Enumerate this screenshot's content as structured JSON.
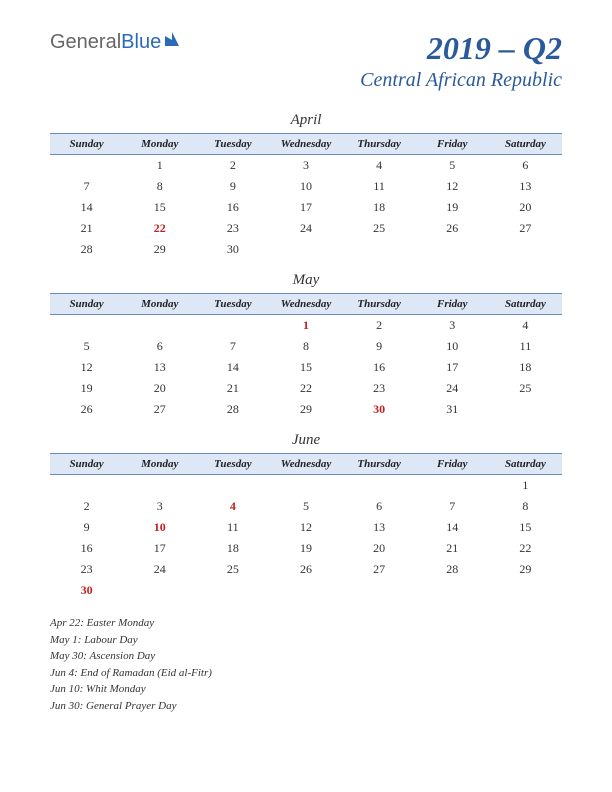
{
  "logo": {
    "part1": "General",
    "part2": "Blue"
  },
  "header": {
    "quarter": "2019 – Q2",
    "country": "Central African Republic"
  },
  "dayNames": [
    "Sunday",
    "Monday",
    "Tuesday",
    "Wednesday",
    "Thursday",
    "Friday",
    "Saturday"
  ],
  "months": [
    {
      "name": "April",
      "weeks": [
        [
          "",
          "1",
          "2",
          "3",
          "4",
          "5",
          "6"
        ],
        [
          "7",
          "8",
          "9",
          "10",
          "11",
          "12",
          "13"
        ],
        [
          "14",
          "15",
          "16",
          "17",
          "18",
          "19",
          "20"
        ],
        [
          "21",
          "22",
          "23",
          "24",
          "25",
          "26",
          "27"
        ],
        [
          "28",
          "29",
          "30",
          "",
          "",
          "",
          ""
        ]
      ],
      "holidays": [
        [
          3,
          1
        ]
      ]
    },
    {
      "name": "May",
      "weeks": [
        [
          "",
          "",
          "",
          "1",
          "2",
          "3",
          "4"
        ],
        [
          "5",
          "6",
          "7",
          "8",
          "9",
          "10",
          "11"
        ],
        [
          "12",
          "13",
          "14",
          "15",
          "16",
          "17",
          "18"
        ],
        [
          "19",
          "20",
          "21",
          "22",
          "23",
          "24",
          "25"
        ],
        [
          "26",
          "27",
          "28",
          "29",
          "30",
          "31",
          ""
        ]
      ],
      "holidays": [
        [
          0,
          3
        ],
        [
          4,
          4
        ]
      ]
    },
    {
      "name": "June",
      "weeks": [
        [
          "",
          "",
          "",
          "",
          "",
          "",
          "1"
        ],
        [
          "2",
          "3",
          "4",
          "5",
          "6",
          "7",
          "8"
        ],
        [
          "9",
          "10",
          "11",
          "12",
          "13",
          "14",
          "15"
        ],
        [
          "16",
          "17",
          "18",
          "19",
          "20",
          "21",
          "22"
        ],
        [
          "23",
          "24",
          "25",
          "26",
          "27",
          "28",
          "29"
        ],
        [
          "30",
          "",
          "",
          "",
          "",
          "",
          ""
        ]
      ],
      "holidays": [
        [
          1,
          2
        ],
        [
          2,
          1
        ],
        [
          5,
          0
        ]
      ]
    }
  ],
  "holidayList": [
    "Apr 22: Easter Monday",
    "May 1: Labour Day",
    "May 30: Ascension Day",
    "Jun 4: End of Ramadan (Eid al-Fitr)",
    "Jun 10: Whit Monday",
    "Jun 30: General Prayer Day"
  ],
  "colors": {
    "headerBg": "#dde7f5",
    "headerBorder": "#6a8ab8",
    "titleColor": "#2a5a9a",
    "holidayColor": "#c02020",
    "textColor": "#333333",
    "logoBlue": "#2a6bb8"
  }
}
